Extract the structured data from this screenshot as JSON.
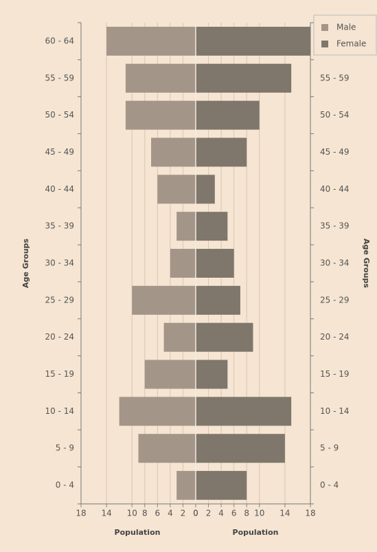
{
  "chart_data": {
    "type": "bar",
    "orientation": "horizontal-pyramid",
    "x_label": "Population",
    "y_label": "Age Groups",
    "categories": [
      "0 - 4",
      "5 - 9",
      "10 - 14",
      "15 - 19",
      "20 - 24",
      "25 - 29",
      "30 - 34",
      "35 - 39",
      "40 - 44",
      "45 - 49",
      "50 - 54",
      "55 - 59",
      "60 - 64"
    ],
    "series": [
      {
        "name": "Male",
        "color": "#a39587",
        "values": [
          3,
          9,
          12,
          8,
          5,
          10,
          4,
          3,
          6,
          7,
          11,
          11,
          14
        ]
      },
      {
        "name": "Female",
        "color": "#7f776b",
        "values": [
          8,
          14,
          15,
          5,
          9,
          7,
          6,
          5,
          3,
          8,
          10,
          15,
          18
        ]
      }
    ],
    "xlim": [
      0,
      18
    ],
    "xticks": [
      0,
      2,
      4,
      6,
      8,
      10,
      14,
      18
    ],
    "grid": true,
    "legend": "top-right"
  }
}
